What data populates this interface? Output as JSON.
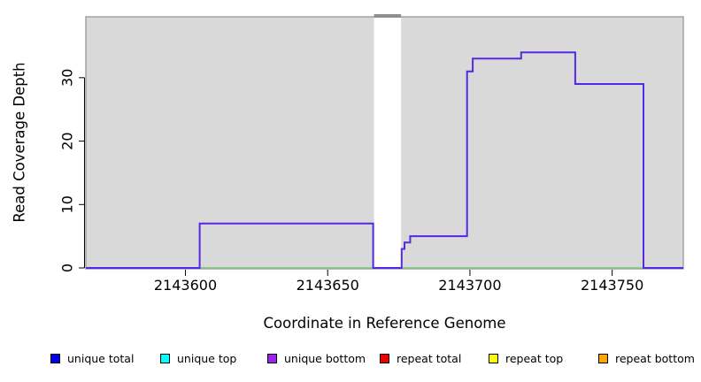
{
  "chart_data": {
    "type": "line",
    "subtype": "step-coverage",
    "title": "",
    "xlabel": "Coordinate in Reference Genome",
    "ylabel": "Read Coverage Depth",
    "xlim": [
      2143565,
      2143775
    ],
    "ylim": [
      0,
      39.6
    ],
    "x_ticks": [
      2143600,
      2143650,
      2143700,
      2143750
    ],
    "y_ticks": [
      0,
      10,
      20,
      30
    ],
    "grid": false,
    "plot_background": "#d9d9d9",
    "plot_border": "#a3a3a3",
    "gap_band": {
      "x_start": 2143666.3,
      "x_end": 2143675.8,
      "fill": "#ffffff",
      "top_edge_color": "#8f8f8f"
    },
    "series": [
      {
        "name": "coverage-steps",
        "color": "#5429e6",
        "points": [
          [
            2143565,
            0
          ],
          [
            2143605,
            0
          ],
          [
            2143605,
            7
          ],
          [
            2143666,
            7
          ],
          [
            2143666,
            0
          ],
          [
            2143676,
            0
          ],
          [
            2143676,
            3
          ],
          [
            2143677,
            3
          ],
          [
            2143677,
            4
          ],
          [
            2143679,
            4
          ],
          [
            2143679,
            5
          ],
          [
            2143699,
            5
          ],
          [
            2143699,
            31
          ],
          [
            2143701,
            31
          ],
          [
            2143701,
            33
          ],
          [
            2143718,
            33
          ],
          [
            2143718,
            34
          ],
          [
            2143737,
            34
          ],
          [
            2143737,
            29
          ],
          [
            2143761,
            29
          ],
          [
            2143761,
            0
          ],
          [
            2143775,
            0
          ]
        ]
      },
      {
        "name": "zero-baseline",
        "color": "#7cc87c",
        "points": [
          [
            2143565,
            0
          ],
          [
            2143775,
            0
          ]
        ]
      }
    ],
    "legend": [
      {
        "label": "unique total",
        "color": "#0000ee"
      },
      {
        "label": "unique top",
        "color": "#00ffff"
      },
      {
        "label": "unique bottom",
        "color": "#a020f0"
      },
      {
        "label": "repeat total",
        "color": "#ee0000"
      },
      {
        "label": "repeat top",
        "color": "#ffff00"
      },
      {
        "label": "repeat bottom",
        "color": "#ffa500"
      }
    ],
    "legend_position": "bottom"
  }
}
